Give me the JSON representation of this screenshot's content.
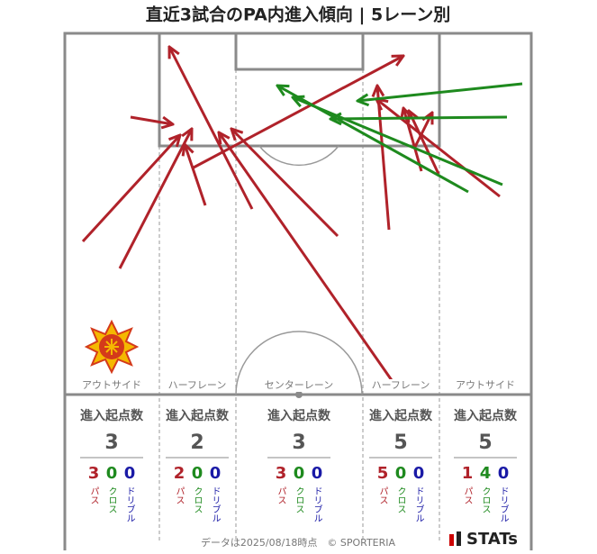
{
  "title": "直近3試合のPA内進入傾向 | 5レーン別",
  "lanes": [
    {
      "name": "アウトサイド",
      "heading": "進入起点数",
      "total": 3,
      "pass": 3,
      "cross": 0,
      "dribble": 0
    },
    {
      "name": "ハーフレーン",
      "heading": "進入起点数",
      "total": 2,
      "pass": 2,
      "cross": 0,
      "dribble": 0
    },
    {
      "name": "センターレーン",
      "heading": "進入起点数",
      "total": 3,
      "pass": 3,
      "cross": 0,
      "dribble": 0
    },
    {
      "name": "ハーフレーン",
      "heading": "進入起点数",
      "total": 5,
      "pass": 5,
      "cross": 0,
      "dribble": 0
    },
    {
      "name": "アウトサイド",
      "heading": "進入起点数",
      "total": 5,
      "pass": 1,
      "cross": 4,
      "dribble": 0
    }
  ],
  "kinds": {
    "pass": "パス",
    "cross": "クロス",
    "dribble": "ドリブル"
  },
  "footer": "データは2025/08/18時点　© SPORTERIA",
  "brand": "STATs"
}
